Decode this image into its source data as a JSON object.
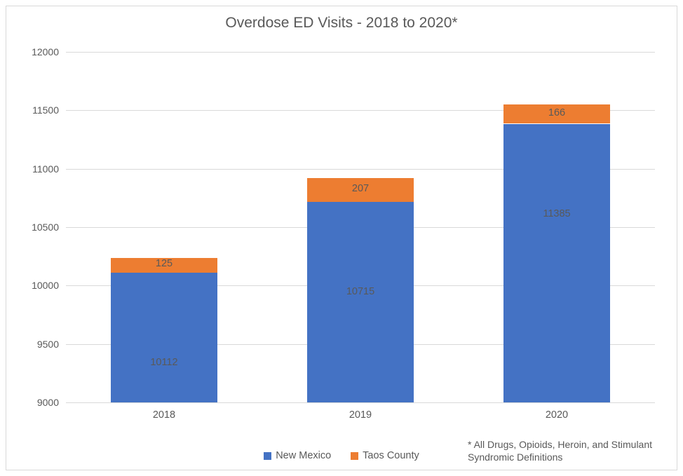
{
  "chart": {
    "type": "stacked-bar",
    "title": "Overdose ED Visits - 2018 to 2020*",
    "title_fontsize": 21,
    "title_color": "#595959",
    "background_color": "#ffffff",
    "plot_border_color": "#d9d9d9",
    "grid_color": "#d9d9d9",
    "tick_font_color": "#595959",
    "tick_fontsize": 14,
    "bar_width_ratio": 0.54,
    "y_axis": {
      "min": 9000,
      "max": 12000,
      "step": 500,
      "ticks": [
        9000,
        9500,
        10000,
        10500,
        11000,
        11500,
        12000
      ]
    },
    "categories": [
      "2018",
      "2019",
      "2020"
    ],
    "series": [
      {
        "name": "New Mexico",
        "color": "#4472c4",
        "values": [
          10112,
          10715,
          11385
        ]
      },
      {
        "name": "Taos County",
        "color": "#ed7d31",
        "values": [
          125,
          207,
          166
        ]
      }
    ],
    "data_label_color": "#595959",
    "data_label_fontsize": 14.5,
    "footnote": "* All Drugs, Opioids, Heroin, and Stimulant Syndromic Definitions"
  }
}
